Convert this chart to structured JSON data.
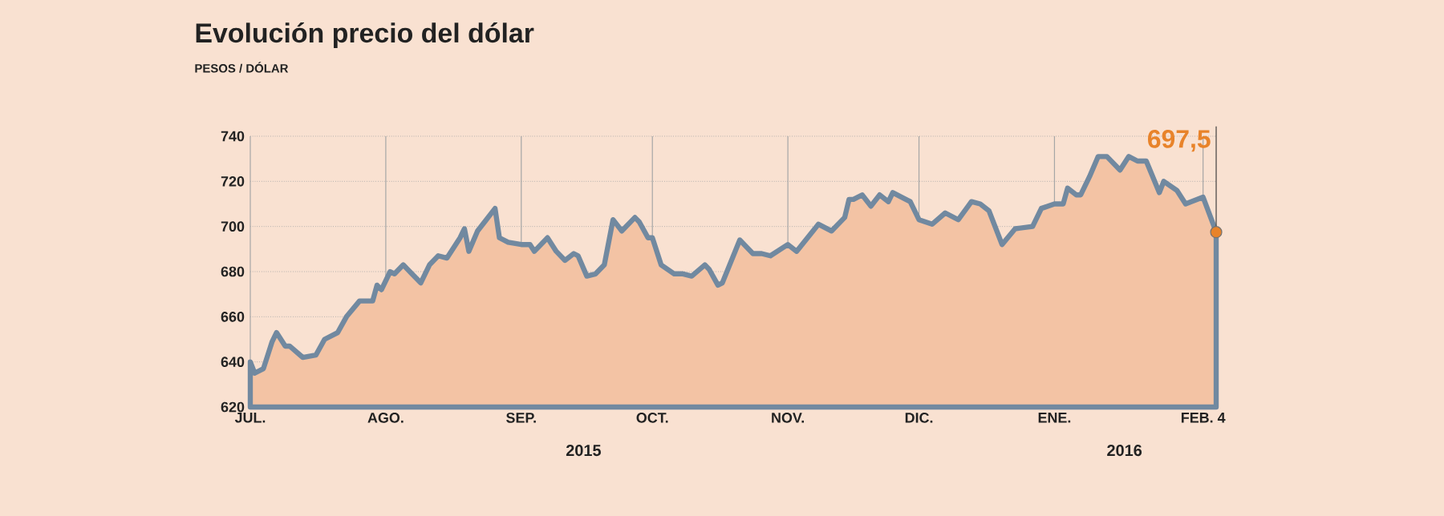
{
  "chart_data": {
    "type": "area",
    "title": "Evolución precio del dólar",
    "subtitle": "PESOS / DÓLAR",
    "x": [
      "2015-07-01",
      "2015-07-02",
      "2015-07-04",
      "2015-07-06",
      "2015-07-07",
      "2015-07-09",
      "2015-07-10",
      "2015-07-13",
      "2015-07-16",
      "2015-07-18",
      "2015-07-21",
      "2015-07-23",
      "2015-07-26",
      "2015-07-29",
      "2015-07-30",
      "2015-07-31",
      "2015-08-02",
      "2015-08-03",
      "2015-08-05",
      "2015-08-09",
      "2015-08-11",
      "2015-08-13",
      "2015-08-15",
      "2015-08-18",
      "2015-08-19",
      "2015-08-20",
      "2015-08-22",
      "2015-08-24",
      "2015-08-26",
      "2015-08-27",
      "2015-08-29",
      "2015-09-01",
      "2015-09-03",
      "2015-09-04",
      "2015-09-07",
      "2015-09-09",
      "2015-09-11",
      "2015-09-13",
      "2015-09-14",
      "2015-09-16",
      "2015-09-18",
      "2015-09-20",
      "2015-09-22",
      "2015-09-24",
      "2015-09-27",
      "2015-09-28",
      "2015-09-30",
      "2015-10-01",
      "2015-10-03",
      "2015-10-06",
      "2015-10-08",
      "2015-10-10",
      "2015-10-13",
      "2015-10-14",
      "2015-10-16",
      "2015-10-17",
      "2015-10-21",
      "2015-10-24",
      "2015-10-26",
      "2015-10-28",
      "2015-11-01",
      "2015-11-03",
      "2015-11-08",
      "2015-11-11",
      "2015-11-14",
      "2015-11-15",
      "2015-11-16",
      "2015-11-18",
      "2015-11-20",
      "2015-11-22",
      "2015-11-24",
      "2015-11-25",
      "2015-11-28",
      "2015-11-29",
      "2015-12-01",
      "2015-12-04",
      "2015-12-07",
      "2015-12-10",
      "2015-12-13",
      "2015-12-15",
      "2015-12-17",
      "2015-12-20",
      "2015-12-23",
      "2015-12-27",
      "2015-12-29",
      "2016-01-01",
      "2016-01-03",
      "2016-01-04",
      "2016-01-06",
      "2016-01-07",
      "2016-01-09",
      "2016-01-11",
      "2016-01-13",
      "2016-01-16",
      "2016-01-18",
      "2016-01-20",
      "2016-01-22",
      "2016-01-25",
      "2016-01-26",
      "2016-01-29",
      "2016-01-31",
      "2016-02-04",
      "2016-02-07"
    ],
    "series": [
      {
        "color": "#7189a0",
        "values": [
          640,
          635,
          637,
          649,
          653,
          647,
          647,
          642,
          643,
          650,
          653,
          660,
          667,
          667,
          674,
          672,
          680,
          679,
          683,
          675,
          683,
          687,
          686,
          695,
          699,
          689,
          698,
          703,
          708,
          695,
          693,
          692,
          692,
          689,
          695,
          689,
          685,
          688,
          687,
          678,
          679,
          683,
          703,
          698,
          704,
          702,
          695,
          695,
          683,
          679,
          679,
          678,
          683,
          681,
          674,
          675,
          694,
          688,
          688,
          687,
          692,
          689,
          701,
          698,
          704,
          712,
          712,
          714,
          709,
          714,
          711,
          715,
          712,
          711,
          703,
          701,
          706,
          703,
          711,
          710,
          707,
          692,
          699,
          700,
          708,
          710,
          710,
          717,
          714,
          714,
          722,
          731,
          731,
          725,
          731,
          729,
          729,
          715,
          720,
          716,
          710,
          713,
          697.5
        ]
      }
    ],
    "xlim": [
      "2015-07-01",
      "2016-02-07"
    ],
    "ylim": [
      620,
      740
    ],
    "xticks": [
      {
        "value": "2015-07-01",
        "label": "JUL."
      },
      {
        "value": "2015-08-01",
        "label": "AGO."
      },
      {
        "value": "2015-09-01",
        "label": "SEP."
      },
      {
        "value": "2015-10-01",
        "label": "OCT."
      },
      {
        "value": "2015-11-01",
        "label": "NOV."
      },
      {
        "value": "2015-12-01",
        "label": "DIC."
      },
      {
        "value": "2016-01-01",
        "label": "ENE."
      },
      {
        "value": "2016-02-04",
        "label": "FEB. 4"
      }
    ],
    "yticks": [
      620,
      640,
      660,
      680,
      700,
      720,
      740
    ],
    "grid": true,
    "annotations": [
      {
        "text": "697,5",
        "x": "2016-02-07",
        "y": 697.5
      },
      "2015",
      "2016"
    ]
  }
}
